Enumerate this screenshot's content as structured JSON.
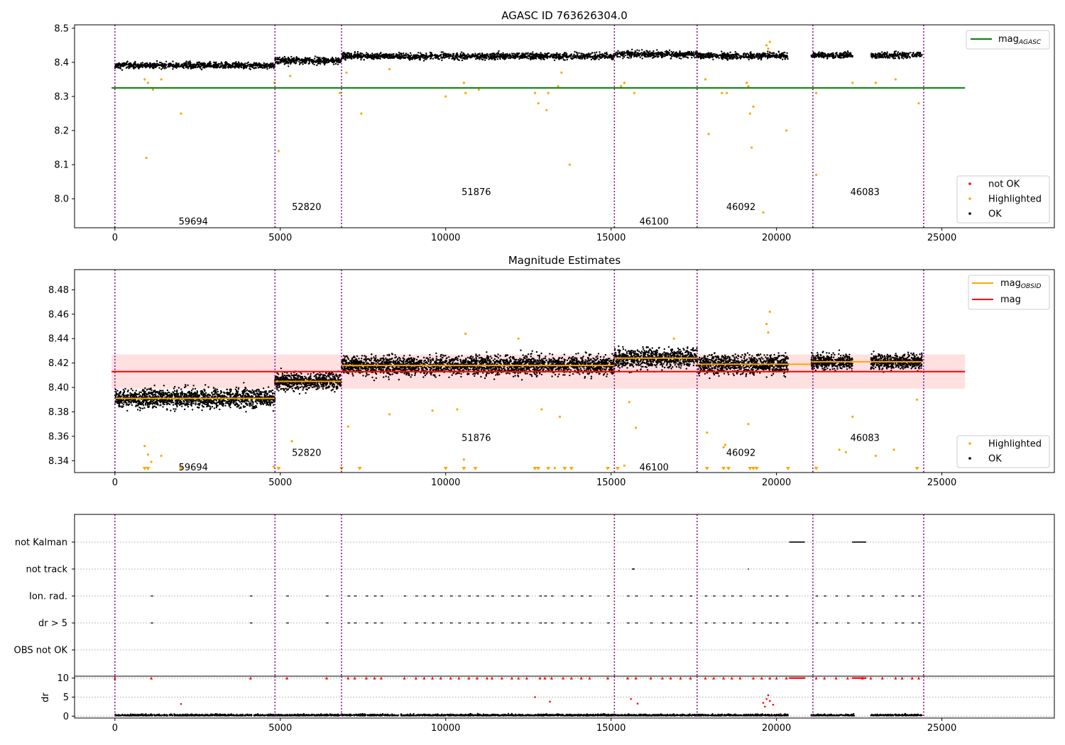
{
  "chart_data": [
    {
      "type": "scatter",
      "title": "AGASC ID 763626304.0",
      "xlim": [
        -1220,
        28400
      ],
      "ylim": [
        7.915,
        8.51
      ],
      "xticks": [
        "0",
        "5000",
        "10000",
        "15000",
        "20000",
        "25000"
      ],
      "xtick_values": [
        0,
        5000,
        10000,
        15000,
        20000,
        25000
      ],
      "yticks": [
        "8.0",
        "8.1",
        "8.2",
        "8.3",
        "8.4",
        "8.5"
      ],
      "ytick_values": [
        8.0,
        8.1,
        8.2,
        8.3,
        8.4,
        8.5
      ],
      "mag_agasc": 8.325,
      "mag_agasc_x": [
        -100,
        25700
      ],
      "legend_top": [
        "mag$_{AGASC}$"
      ],
      "legend_bottom": [
        "not OK",
        "Highlighted",
        "OK"
      ],
      "legend_placement": [
        "top-right",
        "bottom-right"
      ],
      "colors": {
        "ok": "#000000",
        "highlighted": "#ffa500",
        "not_ok": "#ff0000",
        "agasc_line": "#008000",
        "boundary": "#800080"
      },
      "observations": [
        {
          "obsid": "59694",
          "x0": 0,
          "x1": 4840,
          "mean": 8.391,
          "label_y": 7.935
        },
        {
          "obsid": "52820",
          "x0": 4840,
          "x1": 6850,
          "mean": 8.405,
          "label_y": 7.977
        },
        {
          "obsid": "51876",
          "x0": 6850,
          "x1": 15100,
          "mean": 8.418,
          "label_y": 8.021
        },
        {
          "obsid": "46100",
          "x0": 15100,
          "x1": 17600,
          "mean": 8.424,
          "label_y": 7.935
        },
        {
          "obsid": "46092",
          "x0": 17600,
          "x1": 20350,
          "mean": 8.419,
          "label_y": 7.977
        },
        {
          "obsid": "46083",
          "x0": 21050,
          "x1": 24400,
          "mean": 8.421,
          "label_y": 8.021
        }
      ],
      "boundaries": [
        0,
        4840,
        6850,
        15100,
        17600,
        21100,
        24450
      ],
      "highlighted_points": [
        [
          900,
          8.35
        ],
        [
          1000,
          8.34
        ],
        [
          1150,
          8.32
        ],
        [
          1400,
          8.35
        ],
        [
          2000,
          8.25
        ],
        [
          950,
          8.12
        ],
        [
          4820,
          8.34
        ],
        [
          4950,
          8.14
        ],
        [
          5300,
          8.36
        ],
        [
          6800,
          8.31
        ],
        [
          7000,
          8.37
        ],
        [
          7450,
          8.25
        ],
        [
          8300,
          8.38
        ],
        [
          10000,
          8.3
        ],
        [
          10550,
          8.34
        ],
        [
          10600,
          8.31
        ],
        [
          11000,
          8.32
        ],
        [
          12700,
          8.31
        ],
        [
          12800,
          8.28
        ],
        [
          13100,
          8.31
        ],
        [
          13050,
          8.26
        ],
        [
          13400,
          8.33
        ],
        [
          13750,
          8.1
        ],
        [
          13500,
          8.37
        ],
        [
          15300,
          8.33
        ],
        [
          15400,
          8.34
        ],
        [
          15700,
          8.31
        ],
        [
          17850,
          8.35
        ],
        [
          17950,
          8.19
        ],
        [
          18350,
          8.31
        ],
        [
          18500,
          8.31
        ],
        [
          19100,
          8.34
        ],
        [
          19150,
          8.33
        ],
        [
          19200,
          8.25
        ],
        [
          19300,
          8.27
        ],
        [
          19250,
          8.15
        ],
        [
          19600,
          7.96
        ],
        [
          20300,
          8.2
        ],
        [
          21200,
          8.31
        ],
        [
          21200,
          8.07
        ],
        [
          22300,
          8.34
        ],
        [
          23000,
          8.34
        ],
        [
          23600,
          8.35
        ],
        [
          24300,
          8.28
        ],
        [
          19700,
          8.45
        ],
        [
          19800,
          8.46
        ],
        [
          19750,
          8.44
        ]
      ]
    },
    {
      "type": "scatter",
      "title": "Magnitude Estimates",
      "xlim": [
        -1220,
        28400
      ],
      "ylim": [
        8.3303,
        8.4965
      ],
      "xticks": [
        "0",
        "5000",
        "10000",
        "15000",
        "20000",
        "25000"
      ],
      "xtick_values": [
        0,
        5000,
        10000,
        15000,
        20000,
        25000
      ],
      "yticks": [
        "8.34",
        "8.36",
        "8.38",
        "8.40",
        "8.42",
        "8.44",
        "8.46",
        "8.48"
      ],
      "ytick_values": [
        8.34,
        8.36,
        8.38,
        8.4,
        8.42,
        8.44,
        8.46,
        8.48
      ],
      "mag": 8.413,
      "mag_band": [
        8.399,
        8.427
      ],
      "mag_x": [
        -100,
        25700
      ],
      "legend_top": [
        "mag$_{OBSID}$",
        "mag"
      ],
      "legend_bottom": [
        "Highlighted",
        "OK"
      ],
      "legend_placement": [
        "top-right",
        "bottom-right"
      ],
      "colors": {
        "ok": "#000000",
        "highlighted": "#ffa500",
        "mag_line": "#ff0000",
        "mag_band": "#ffdddd",
        "obsid_line": "#ffa500"
      },
      "observations": [
        {
          "obsid": "59694",
          "x0": 0,
          "x1": 4840,
          "mean": 8.391,
          "spread": 0.01,
          "label_y": 8.335
        },
        {
          "obsid": "52820",
          "x0": 4840,
          "x1": 6850,
          "mean": 8.405,
          "spread": 0.008,
          "label_y": 8.347
        },
        {
          "obsid": "51876",
          "x0": 6850,
          "x1": 15100,
          "mean": 8.418,
          "spread": 0.01,
          "label_y": 8.359
        },
        {
          "obsid": "46100",
          "x0": 15100,
          "x1": 17600,
          "mean": 8.424,
          "spread": 0.01,
          "label_y": 8.335
        },
        {
          "obsid": "46092",
          "x0": 17600,
          "x1": 20350,
          "mean": 8.419,
          "spread": 0.01,
          "label_y": 8.347
        },
        {
          "obsid": "46083",
          "x0": 21050,
          "x1": 24400,
          "mean": 8.421,
          "spread": 0.008,
          "label_y": 8.359
        }
      ],
      "gap_segment": {
        "x0": 20350,
        "x1": 21050,
        "mean": 8.419
      },
      "highlighted_points": [
        [
          900,
          8.352
        ],
        [
          1000,
          8.345
        ],
        [
          1100,
          8.339
        ],
        [
          1400,
          8.344
        ],
        [
          4800,
          8.335
        ],
        [
          5350,
          8.356
        ],
        [
          7050,
          8.368
        ],
        [
          8300,
          8.378
        ],
        [
          9600,
          8.381
        ],
        [
          10350,
          8.382
        ],
        [
          10550,
          8.341
        ],
        [
          10600,
          8.444
        ],
        [
          12900,
          8.382
        ],
        [
          13450,
          8.376
        ],
        [
          13300,
          8.334
        ],
        [
          15550,
          8.388
        ],
        [
          15750,
          8.367
        ],
        [
          15400,
          8.336
        ],
        [
          17900,
          8.363
        ],
        [
          18400,
          8.351
        ],
        [
          18450,
          8.353
        ],
        [
          19150,
          8.37
        ],
        [
          19700,
          8.452
        ],
        [
          19800,
          8.462
        ],
        [
          19750,
          8.445
        ],
        [
          21900,
          8.349
        ],
        [
          22100,
          8.347
        ],
        [
          23000,
          8.344
        ],
        [
          23550,
          8.349
        ],
        [
          22300,
          8.376
        ],
        [
          24250,
          8.39
        ],
        [
          16900,
          8.44
        ],
        [
          12200,
          8.44
        ]
      ],
      "offscale_x": [
        900,
        1000,
        2000,
        4950,
        6850,
        7400,
        10000,
        10550,
        10900,
        12700,
        12800,
        13100,
        13600,
        13800,
        14900,
        15200,
        17900,
        18400,
        18550,
        19200,
        19300,
        19400,
        20350,
        21200,
        24250
      ]
    },
    {
      "type": "scatter",
      "title": "",
      "xlim": [
        -1220,
        28400
      ],
      "xticks": [
        "0",
        "5000",
        "10000",
        "15000",
        "20000",
        "25000"
      ],
      "xtick_values": [
        0,
        5000,
        10000,
        15000,
        20000,
        25000
      ],
      "flag_labels": [
        "not Kalman",
        "not track",
        "Ion. rad.",
        "dr > 5",
        "OBS not OK"
      ],
      "flag_events": {
        "not Kalman": [
          [
            20400,
            20850
          ],
          [
            22300,
            22700
          ]
        ],
        "not track": [
          [
            0,
            10
          ],
          [
            15650,
            15700
          ],
          [
            19150,
            19160
          ]
        ],
        "Ion. rad.": [
          1100,
          4100,
          5200,
          6400,
          7050,
          7250,
          7600,
          7850,
          8050,
          8750,
          9100,
          9350,
          9600,
          9850,
          10150,
          10400,
          10700,
          10950,
          11250,
          11400,
          11700,
          12000,
          12200,
          12450,
          12850,
          13000,
          13200,
          13550,
          13800,
          14100,
          14350,
          14900,
          15500,
          15750,
          16200,
          16550,
          16800,
          17100,
          17400,
          17850,
          18100,
          18400,
          18650,
          18900,
          19300,
          19550,
          19800,
          20000,
          20300,
          21200,
          21450,
          21800,
          22150,
          22600,
          22850,
          23200,
          23600,
          23800,
          24100,
          24300
        ],
        "dr > 5": [
          1100,
          4100,
          5200,
          6400,
          7050,
          7250,
          7600,
          7850,
          8050,
          8750,
          9100,
          9350,
          9600,
          9850,
          10150,
          10400,
          10700,
          10950,
          11250,
          11400,
          11700,
          12000,
          12200,
          12450,
          12850,
          13000,
          13200,
          13550,
          13800,
          14100,
          14350,
          14900,
          15500,
          15750,
          16200,
          16550,
          16800,
          17100,
          17400,
          17850,
          18100,
          18400,
          18650,
          18900,
          19300,
          19550,
          19800,
          20000,
          20300,
          21200,
          21450,
          21800,
          22150,
          22600,
          22850,
          23200,
          23600,
          23800,
          24100,
          24300
        ],
        "OBS not OK": []
      }
    },
    {
      "type": "scatter",
      "ylabel": "dr",
      "xlim": [
        -1220,
        28400
      ],
      "ylim": [
        -0.5,
        10.5
      ],
      "yticks": [
        "0",
        "5",
        "10"
      ],
      "ytick_values": [
        0,
        5,
        10
      ],
      "xticks": [
        "0",
        "5000",
        "10000",
        "15000",
        "20000",
        "25000"
      ],
      "xtick_values": [
        0,
        5000,
        10000,
        15000,
        20000,
        25000
      ],
      "clipped_at_10_color": "#ff0000",
      "segments": [
        [
          0,
          4840
        ],
        [
          4840,
          6850
        ],
        [
          6850,
          15100
        ],
        [
          15100,
          17600
        ],
        [
          17600,
          20350
        ],
        [
          21050,
          22350
        ],
        [
          22850,
          24400
        ]
      ],
      "red_points": [
        [
          2000,
          3.2
        ],
        [
          12700,
          5
        ],
        [
          15600,
          4.5
        ],
        [
          15800,
          3.3
        ],
        [
          19600,
          3.5
        ],
        [
          19700,
          4.5
        ],
        [
          19750,
          5.5
        ],
        [
          19800,
          4
        ],
        [
          19650,
          2.5
        ],
        [
          19900,
          3
        ],
        [
          13150,
          3.8
        ]
      ]
    }
  ]
}
